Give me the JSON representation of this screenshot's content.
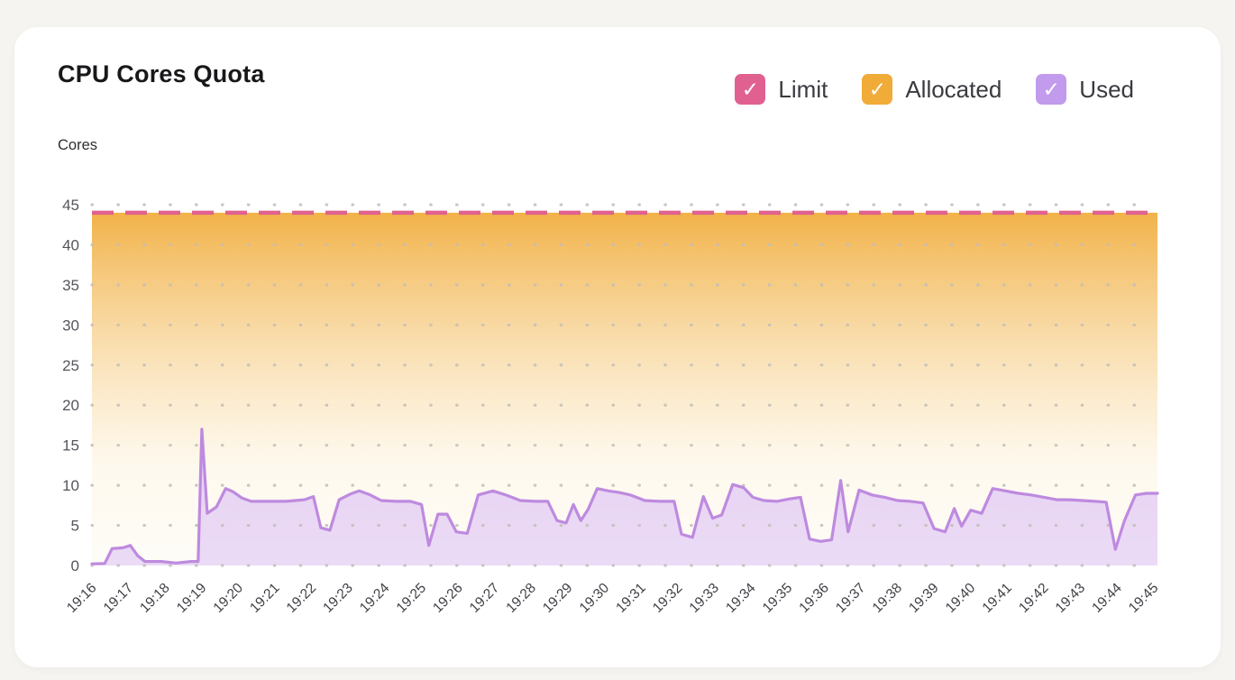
{
  "page": {
    "background": "#f5f4f0",
    "card_background": "#ffffff"
  },
  "header": {
    "title": "CPU Cores Quota",
    "y_axis_unit": "Cores"
  },
  "icons": {
    "check": "✓"
  },
  "legend": [
    {
      "label": "Limit",
      "color": "#e0618f",
      "checked": true
    },
    {
      "label": "Allocated",
      "color": "#f0ab38",
      "checked": true
    },
    {
      "label": "Used",
      "color": "#c39bed",
      "checked": true
    }
  ],
  "chart_data": {
    "type": "area",
    "title": "CPU Cores Quota",
    "ylabel": "Cores",
    "ylim": [
      0,
      45
    ],
    "y_tick_step": 5,
    "grid": "dotted",
    "legend_position": "top-right",
    "x_tick_labels": [
      "19:16",
      "19:17",
      "19:18",
      "19:19",
      "19:20",
      "19:21",
      "19:22",
      "19:23",
      "19:24",
      "19:25",
      "19:26",
      "19:27",
      "19:28",
      "19:29",
      "19:30",
      "19:31",
      "19:32",
      "19:33",
      "19:34",
      "19:35",
      "19:36",
      "19:37",
      "19:38",
      "19:39",
      "19:40",
      "19:41",
      "19:42",
      "19:43",
      "19:44",
      "19:45"
    ],
    "x_minutes_span": 29.1,
    "limit": {
      "name": "Limit",
      "value": 44,
      "color": "#e0618f"
    },
    "allocated": {
      "name": "Allocated",
      "value": 44,
      "color": "#f1ae3f",
      "fade_color": "#fdf4e0"
    },
    "used": {
      "name": "Used",
      "line_color": "#be8adf",
      "fill_color": "#e3cdf5",
      "points": [
        [
          0,
          0.2
        ],
        [
          0.35,
          0.25
        ],
        [
          0.55,
          2.1
        ],
        [
          0.85,
          2.2
        ],
        [
          1.05,
          2.5
        ],
        [
          1.25,
          1.2
        ],
        [
          1.45,
          0.5
        ],
        [
          1.9,
          0.5
        ],
        [
          2.3,
          0.3
        ],
        [
          2.7,
          0.5
        ],
        [
          2.9,
          0.5
        ],
        [
          3.0,
          17
        ],
        [
          3.15,
          6.5
        ],
        [
          3.4,
          7.3
        ],
        [
          3.65,
          9.6
        ],
        [
          3.85,
          9.2
        ],
        [
          4.1,
          8.4
        ],
        [
          4.35,
          8
        ],
        [
          4.8,
          8
        ],
        [
          5.3,
          8
        ],
        [
          5.8,
          8.2
        ],
        [
          6.05,
          8.6
        ],
        [
          6.25,
          4.7
        ],
        [
          6.5,
          4.4
        ],
        [
          6.75,
          8.2
        ],
        [
          7.05,
          8.9
        ],
        [
          7.3,
          9.3
        ],
        [
          7.6,
          8.8
        ],
        [
          7.9,
          8.1
        ],
        [
          8.3,
          8
        ],
        [
          8.7,
          8
        ],
        [
          9.0,
          7.6
        ],
        [
          9.2,
          2.5
        ],
        [
          9.45,
          6.4
        ],
        [
          9.7,
          6.4
        ],
        [
          9.95,
          4.2
        ],
        [
          10.25,
          4.0
        ],
        [
          10.55,
          8.8
        ],
        [
          10.95,
          9.3
        ],
        [
          11.3,
          8.8
        ],
        [
          11.7,
          8.1
        ],
        [
          12.1,
          8
        ],
        [
          12.45,
          8
        ],
        [
          12.7,
          5.6
        ],
        [
          12.95,
          5.3
        ],
        [
          13.15,
          7.6
        ],
        [
          13.35,
          5.6
        ],
        [
          13.55,
          7.0
        ],
        [
          13.8,
          9.6
        ],
        [
          14.1,
          9.3
        ],
        [
          14.4,
          9.1
        ],
        [
          14.7,
          8.8
        ],
        [
          15.1,
          8.1
        ],
        [
          15.5,
          8
        ],
        [
          15.9,
          8
        ],
        [
          16.1,
          3.9
        ],
        [
          16.4,
          3.5
        ],
        [
          16.7,
          8.6
        ],
        [
          16.95,
          5.9
        ],
        [
          17.2,
          6.3
        ],
        [
          17.5,
          10.1
        ],
        [
          17.8,
          9.7
        ],
        [
          18.05,
          8.5
        ],
        [
          18.35,
          8.1
        ],
        [
          18.7,
          8
        ],
        [
          19.05,
          8.3
        ],
        [
          19.35,
          8.5
        ],
        [
          19.6,
          3.3
        ],
        [
          19.9,
          3.0
        ],
        [
          20.2,
          3.2
        ],
        [
          20.45,
          10.6
        ],
        [
          20.65,
          4.2
        ],
        [
          20.95,
          9.4
        ],
        [
          21.3,
          8.8
        ],
        [
          21.65,
          8.5
        ],
        [
          22.0,
          8.1
        ],
        [
          22.35,
          8
        ],
        [
          22.7,
          7.8
        ],
        [
          23.0,
          4.6
        ],
        [
          23.3,
          4.2
        ],
        [
          23.55,
          7.1
        ],
        [
          23.75,
          4.9
        ],
        [
          24.0,
          6.9
        ],
        [
          24.3,
          6.5
        ],
        [
          24.6,
          9.6
        ],
        [
          24.95,
          9.3
        ],
        [
          25.3,
          9.0
        ],
        [
          25.65,
          8.8
        ],
        [
          26.0,
          8.5
        ],
        [
          26.35,
          8.2
        ],
        [
          26.7,
          8.2
        ],
        [
          27.05,
          8.1
        ],
        [
          27.4,
          8
        ],
        [
          27.7,
          7.9
        ],
        [
          27.95,
          2.0
        ],
        [
          28.2,
          5.6
        ],
        [
          28.5,
          8.8
        ],
        [
          28.8,
          9.0
        ],
        [
          29.1,
          9.0
        ]
      ]
    }
  }
}
